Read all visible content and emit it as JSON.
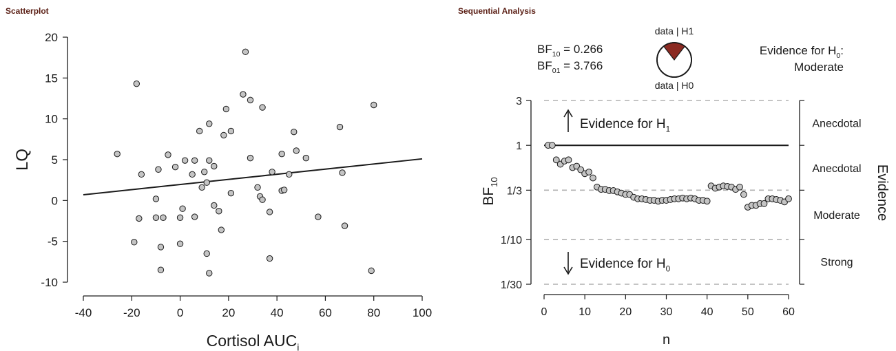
{
  "panels": {
    "left_title": "Scatterplot",
    "right_title": "Sequential Analysis"
  },
  "chart_data": [
    {
      "type": "scatter",
      "title": "Scatterplot",
      "xlabel": "Cortisol AUC",
      "xlabel_sub": "i",
      "ylabel": "LQ",
      "xlim": [
        -40,
        100
      ],
      "ylim": [
        -10,
        20
      ],
      "xticks": [
        -40,
        -20,
        0,
        20,
        40,
        60,
        80,
        100
      ],
      "yticks": [
        -10,
        -5,
        0,
        5,
        10,
        15,
        20
      ],
      "x_tick_labels": [
        "-40",
        "-20",
        "0",
        "20",
        "40",
        "60",
        "80",
        "100"
      ],
      "y_tick_labels": [
        "-10",
        "-5",
        "0",
        "5",
        "10",
        "15",
        "20"
      ],
      "point_color": "#c4c4c4",
      "regression_line": {
        "x": [
          -40,
          100
        ],
        "y": [
          0.7,
          5.1
        ]
      },
      "points": [
        [
          -26,
          5.7
        ],
        [
          -18,
          14.3
        ],
        [
          -17,
          -2.2
        ],
        [
          -16,
          3.2
        ],
        [
          -19,
          -5.1
        ],
        [
          -10,
          0.2
        ],
        [
          -10,
          -2.1
        ],
        [
          -9,
          3.8
        ],
        [
          -8,
          -5.7
        ],
        [
          -8,
          -8.5
        ],
        [
          -7,
          -2.1
        ],
        [
          -5,
          5.6
        ],
        [
          -2,
          4.1
        ],
        [
          0,
          -2.1
        ],
        [
          0,
          -5.3
        ],
        [
          1,
          -1.0
        ],
        [
          2,
          4.9
        ],
        [
          5,
          3.2
        ],
        [
          6,
          -2.0
        ],
        [
          6,
          4.9
        ],
        [
          8,
          8.5
        ],
        [
          9,
          1.6
        ],
        [
          10,
          3.5
        ],
        [
          11,
          2.2
        ],
        [
          11,
          -6.5
        ],
        [
          12,
          9.4
        ],
        [
          12,
          4.9
        ],
        [
          12,
          -8.9
        ],
        [
          14,
          4.2
        ],
        [
          14,
          -0.6
        ],
        [
          16,
          -1.3
        ],
        [
          17,
          -3.6
        ],
        [
          18,
          8.0
        ],
        [
          19,
          11.2
        ],
        [
          21,
          8.5
        ],
        [
          21,
          0.9
        ],
        [
          26,
          13.0
        ],
        [
          27,
          18.2
        ],
        [
          29,
          5.2
        ],
        [
          29,
          12.3
        ],
        [
          32,
          1.6
        ],
        [
          33,
          0.5
        ],
        [
          34,
          11.4
        ],
        [
          34,
          0.1
        ],
        [
          37,
          -1.4
        ],
        [
          37,
          -7.1
        ],
        [
          38,
          3.5
        ],
        [
          42,
          1.2
        ],
        [
          42,
          5.7
        ],
        [
          43,
          1.3
        ],
        [
          45,
          3.2
        ],
        [
          47,
          8.4
        ],
        [
          48,
          6.1
        ],
        [
          52,
          5.2
        ],
        [
          57,
          -2.0
        ],
        [
          66,
          9.0
        ],
        [
          67,
          3.4
        ],
        [
          68,
          -3.1
        ],
        [
          79,
          -8.6
        ],
        [
          80,
          11.7
        ]
      ]
    },
    {
      "type": "scatter",
      "title": "Sequential Analysis",
      "xlabel": "n",
      "ylabel": "BF",
      "ylabel_sub": "10",
      "xlim": [
        0,
        60
      ],
      "y_scale": "log",
      "ylim": [
        0.0333,
        3
      ],
      "xticks": [
        0,
        10,
        20,
        30,
        40,
        50,
        60
      ],
      "x_tick_labels": [
        "0",
        "10",
        "20",
        "30",
        "40",
        "50",
        "60"
      ],
      "yticks": [
        0.0333,
        0.1,
        0.3333,
        1,
        3
      ],
      "y_tick_labels": [
        "1/30",
        "1/10",
        "1/3",
        "1",
        "3"
      ],
      "reference_line": 1,
      "dashed_lines": [
        3,
        0.3333,
        0.1,
        0.0333
      ],
      "point_color": "#c4c4c4",
      "bf10_text": "0.266",
      "bf01_text": "3.766",
      "bf10_prefix": "BF",
      "bf10_prefix_sub": "10",
      "bf01_prefix": "BF",
      "bf01_prefix_sub": "01",
      "equals": " = ",
      "pie": {
        "top_label": "data | H1",
        "bottom_label": "data | H0",
        "h1_fraction": 0.21,
        "h1_color": "#8b2a22"
      },
      "evidence_text_line1": "Evidence for H",
      "evidence_text_sub": "0",
      "evidence_text_colon": ":",
      "evidence_text_line2": "Moderate",
      "arrow_up_label": "Evidence for H",
      "arrow_up_sub": "1",
      "arrow_down_label": "Evidence for H",
      "arrow_down_sub": "0",
      "right_axis_title": "Evidence",
      "category_labels": [
        "Anecdotal",
        "Anecdotal",
        "Moderate",
        "Strong"
      ],
      "category_y": [
        1.732,
        0.577,
        0.183,
        0.058
      ],
      "n": [
        1,
        2,
        3,
        4,
        5,
        6,
        7,
        8,
        9,
        10,
        11,
        12,
        13,
        14,
        15,
        16,
        17,
        18,
        19,
        20,
        21,
        22,
        23,
        24,
        25,
        26,
        27,
        28,
        29,
        30,
        31,
        32,
        33,
        34,
        35,
        36,
        37,
        38,
        39,
        40,
        41,
        42,
        43,
        44,
        45,
        46,
        47,
        48,
        49,
        50,
        51,
        52,
        53,
        54,
        55,
        56,
        57,
        58,
        59,
        60
      ],
      "bf10": [
        1.0,
        1.0,
        0.7,
        0.63,
        0.68,
        0.7,
        0.58,
        0.6,
        0.55,
        0.5,
        0.52,
        0.45,
        0.36,
        0.34,
        0.34,
        0.33,
        0.33,
        0.32,
        0.31,
        0.3,
        0.3,
        0.28,
        0.27,
        0.27,
        0.265,
        0.26,
        0.26,
        0.255,
        0.26,
        0.26,
        0.265,
        0.27,
        0.27,
        0.275,
        0.27,
        0.275,
        0.27,
        0.26,
        0.26,
        0.255,
        0.37,
        0.35,
        0.36,
        0.37,
        0.365,
        0.36,
        0.34,
        0.36,
        0.3,
        0.22,
        0.23,
        0.23,
        0.24,
        0.24,
        0.27,
        0.27,
        0.265,
        0.26,
        0.25,
        0.27
      ]
    }
  ]
}
